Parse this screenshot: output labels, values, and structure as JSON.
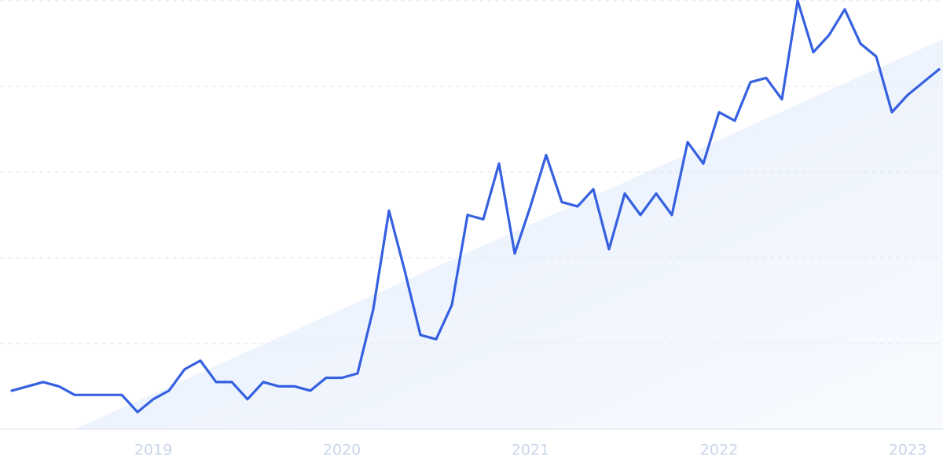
{
  "chart_data": {
    "type": "line",
    "categories": [
      null,
      null,
      null,
      null,
      null,
      null,
      null,
      null,
      null,
      "2019",
      null,
      null,
      null,
      null,
      null,
      null,
      null,
      null,
      null,
      null,
      null,
      "2020",
      null,
      null,
      null,
      null,
      null,
      null,
      null,
      null,
      null,
      null,
      null,
      "2021",
      null,
      null,
      null,
      null,
      null,
      null,
      null,
      null,
      null,
      null,
      null,
      "2022",
      null,
      null,
      null,
      null,
      null,
      null,
      null,
      null,
      null,
      null,
      null,
      "2023",
      null,
      null
    ],
    "values": [
      9,
      10,
      11,
      10,
      8,
      8,
      8,
      8,
      4,
      7,
      9,
      14,
      16,
      11,
      11,
      7,
      11,
      10,
      10,
      9,
      12,
      12,
      13,
      28,
      51,
      37,
      22,
      21,
      29,
      50,
      49,
      62,
      41,
      52,
      64,
      53,
      52,
      56,
      42,
      55,
      50,
      55,
      50,
      67,
      62,
      74,
      72,
      81,
      82,
      77,
      100,
      88,
      92,
      98,
      90,
      87,
      74,
      78,
      81,
      84
    ],
    "color": "#3560e0",
    "ylim": [
      0,
      100
    ],
    "yticks": [
      0,
      20,
      40,
      60,
      80,
      100
    ],
    "grid": true
  }
}
